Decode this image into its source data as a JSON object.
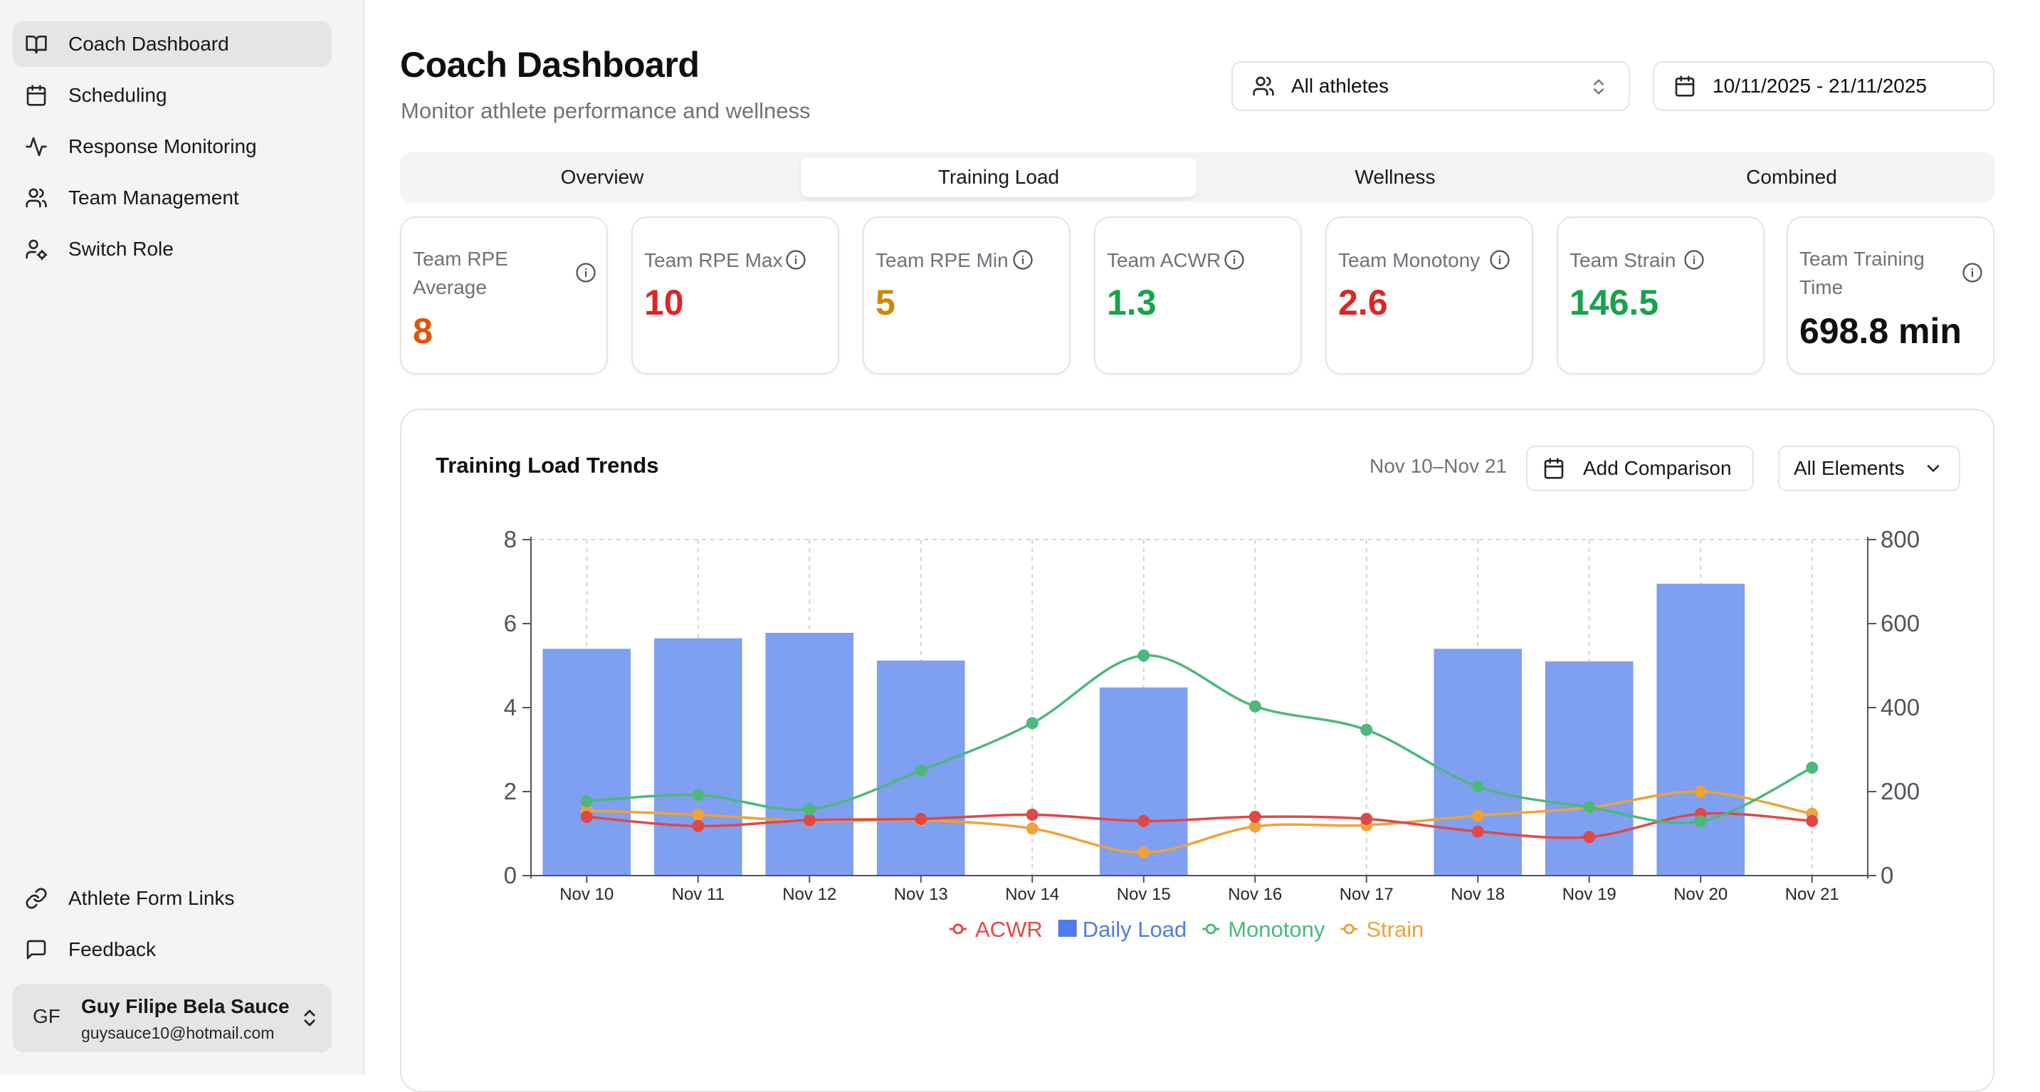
{
  "sidebar": {
    "top_items": [
      {
        "label": "Coach Dashboard",
        "icon": "book-open-icon",
        "active": true
      },
      {
        "label": "Scheduling",
        "icon": "calendar-icon"
      },
      {
        "label": "Response Monitoring",
        "icon": "activity-icon"
      },
      {
        "label": "Team Management",
        "icon": "users-icon"
      },
      {
        "label": "Switch Role",
        "icon": "user-cog-icon"
      }
    ],
    "bottom_items": [
      {
        "label": "Athlete Form Links",
        "icon": "link-icon"
      },
      {
        "label": "Feedback",
        "icon": "message-square-icon"
      }
    ],
    "user": {
      "initials": "GF",
      "name": "Guy Filipe Bela Sauce",
      "email": "guysauce10@hotmail.com"
    }
  },
  "header": {
    "title": "Coach Dashboard",
    "subtitle": "Monitor athlete performance and wellness",
    "athlete_select": "All athletes",
    "date_range": "10/11/2025 - 21/11/2025"
  },
  "tabs": [
    {
      "label": "Overview"
    },
    {
      "label": "Training Load",
      "active": true
    },
    {
      "label": "Wellness"
    },
    {
      "label": "Combined"
    }
  ],
  "stats": [
    {
      "label": "Team RPE Average",
      "value": "8",
      "color": "#e35205"
    },
    {
      "label": "Team RPE Max",
      "value": "10",
      "color": "#dc2626"
    },
    {
      "label": "Team RPE Min",
      "value": "5",
      "color": "#ca8a04"
    },
    {
      "label": "Team ACWR",
      "value": "1.3",
      "color": "#16a34a"
    },
    {
      "label": "Team Monotony",
      "value": "2.6",
      "color": "#dc2626"
    },
    {
      "label": "Team Strain",
      "value": "146.5",
      "color": "#16a34a"
    },
    {
      "label": "Team Training Time",
      "value": "698.8 min",
      "color": "#0f0f12"
    }
  ],
  "panel": {
    "title": "Training Load Trends",
    "range_label": "Nov 10–Nov 21",
    "compare_button": "Add Comparison",
    "elements_select": "All Elements"
  },
  "chart_data": {
    "type": "bar",
    "categories": [
      "Nov 10",
      "Nov 11",
      "Nov 12",
      "Nov 13",
      "Nov 14",
      "Nov 15",
      "Nov 16",
      "Nov 17",
      "Nov 18",
      "Nov 19",
      "Nov 20",
      "Nov 21"
    ],
    "left_axis": {
      "ylim": [
        0,
        8
      ],
      "ticks": [
        0,
        2,
        4,
        6,
        8
      ]
    },
    "right_axis": {
      "ylim": [
        0,
        800
      ],
      "ticks": [
        0,
        200,
        400,
        600,
        800
      ]
    },
    "grid": "dashed-vertical",
    "legend_position": "bottom",
    "series": [
      {
        "name": "ACWR",
        "type": "line",
        "axis": "left",
        "color": "#e04848",
        "values": [
          1.4,
          1.18,
          1.32,
          1.35,
          1.45,
          1.3,
          1.4,
          1.35,
          1.05,
          0.92,
          1.47,
          1.3
        ]
      },
      {
        "name": "Daily Load",
        "type": "bar",
        "axis": "right",
        "color": "#7f9ff0",
        "legend_color": "#4f7ce8",
        "values": [
          540,
          565,
          578,
          512,
          null,
          448,
          null,
          null,
          540,
          510,
          695,
          null
        ]
      },
      {
        "name": "Monotony",
        "type": "line",
        "axis": "left",
        "color": "#4cb87c",
        "values": [
          1.77,
          1.92,
          1.58,
          2.5,
          3.63,
          5.24,
          4.03,
          3.47,
          2.12,
          1.63,
          1.29,
          2.57
        ]
      },
      {
        "name": "Strain",
        "type": "line",
        "axis": "left",
        "color": "#eea23a",
        "values": [
          1.55,
          1.45,
          1.3,
          1.32,
          1.12,
          0.55,
          1.17,
          1.2,
          1.43,
          1.62,
          2.0,
          1.47
        ]
      }
    ]
  }
}
